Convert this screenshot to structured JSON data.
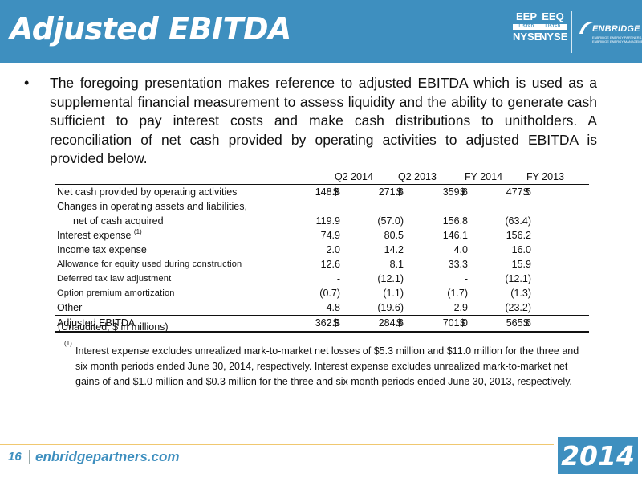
{
  "header": {
    "title": "Adjusted EBITDA",
    "tickers": [
      {
        "symbol": "EEP",
        "band": "LISTED",
        "exchange": "NYSE"
      },
      {
        "symbol": "EEQ",
        "band": "LISTED",
        "exchange": "NYSE"
      }
    ],
    "logo": {
      "word": "ENBRIDGE",
      "sub1": "ENBRIDGE ENERGY PARTNERS, L.P.",
      "sub2": "ENBRIDGE ENERGY MANAGEMENT, L.L.C."
    }
  },
  "bullet": {
    "text": "The foregoing presentation makes reference to adjusted EBITDA which is used as a supplemental financial measurement to assess liquidity and the ability to generate cash sufficient to pay interest costs and make cash distributions to unitholders.  A reconciliation of net cash provided by operating activities to adjusted EBITDA is provided below."
  },
  "table": {
    "columns": [
      "Q2 2014",
      "Q2 2013",
      "FY 2014",
      "FY 2013"
    ],
    "currency": "$",
    "rows": [
      {
        "label": "Net cash provided by operating activities",
        "values": [
          "148.8",
          "271.6",
          "359.6",
          "477.5"
        ],
        "dollar": true
      },
      {
        "label": "Changes in operating assets and liabilities,",
        "values": [
          "",
          "",
          "",
          ""
        ]
      },
      {
        "label": "net of cash acquired",
        "values": [
          "119.9",
          "(57.0)",
          "156.8",
          "(63.4)"
        ],
        "indent": true
      },
      {
        "label": "Interest expense",
        "sup": "(1)",
        "values": [
          "74.9",
          "80.5",
          "146.1",
          "156.2"
        ]
      },
      {
        "label": "Income tax expense",
        "values": [
          "2.0",
          "14.2",
          "4.0",
          "16.0"
        ]
      },
      {
        "label": "Allowance for equity used during construction",
        "values": [
          "12.6",
          "8.1",
          "33.3",
          "15.9"
        ],
        "small": true
      },
      {
        "label": "Deferred tax law adjustment",
        "values": [
          "-",
          "(12.1)",
          "-",
          "(12.1)"
        ],
        "small": true
      },
      {
        "label": "Option premium amortization",
        "values": [
          "(0.7)",
          "(1.1)",
          "(1.7)",
          "(1.3)"
        ],
        "small": true
      },
      {
        "label": "Other",
        "values": [
          "4.8",
          "(19.6)",
          "2.9",
          "(23.2)"
        ]
      }
    ],
    "total": {
      "label": "Adjusted EBITDA",
      "values": [
        "362.3",
        "284.6",
        "701.0",
        "565.6"
      ]
    },
    "units": "(Unaudited; $ in millions)"
  },
  "footnote": {
    "mark": "(1)",
    "text": "Interest expense excludes unrealized mark-to-market net losses of $5.3 million and $11.0 million for the three and six month periods ended June 30, 2014, respectively. Interest expense excludes unrealized mark-to-market net gains of and $1.0 million and $0.3 million for the three and six month periods ended June 30, 2013, respectively."
  },
  "footer": {
    "page_number": "16",
    "site": "enbridgepartners.com",
    "year": "2014"
  },
  "colors": {
    "brand_blue": "#3e8fbf",
    "accent_gold": "#f0c870"
  }
}
